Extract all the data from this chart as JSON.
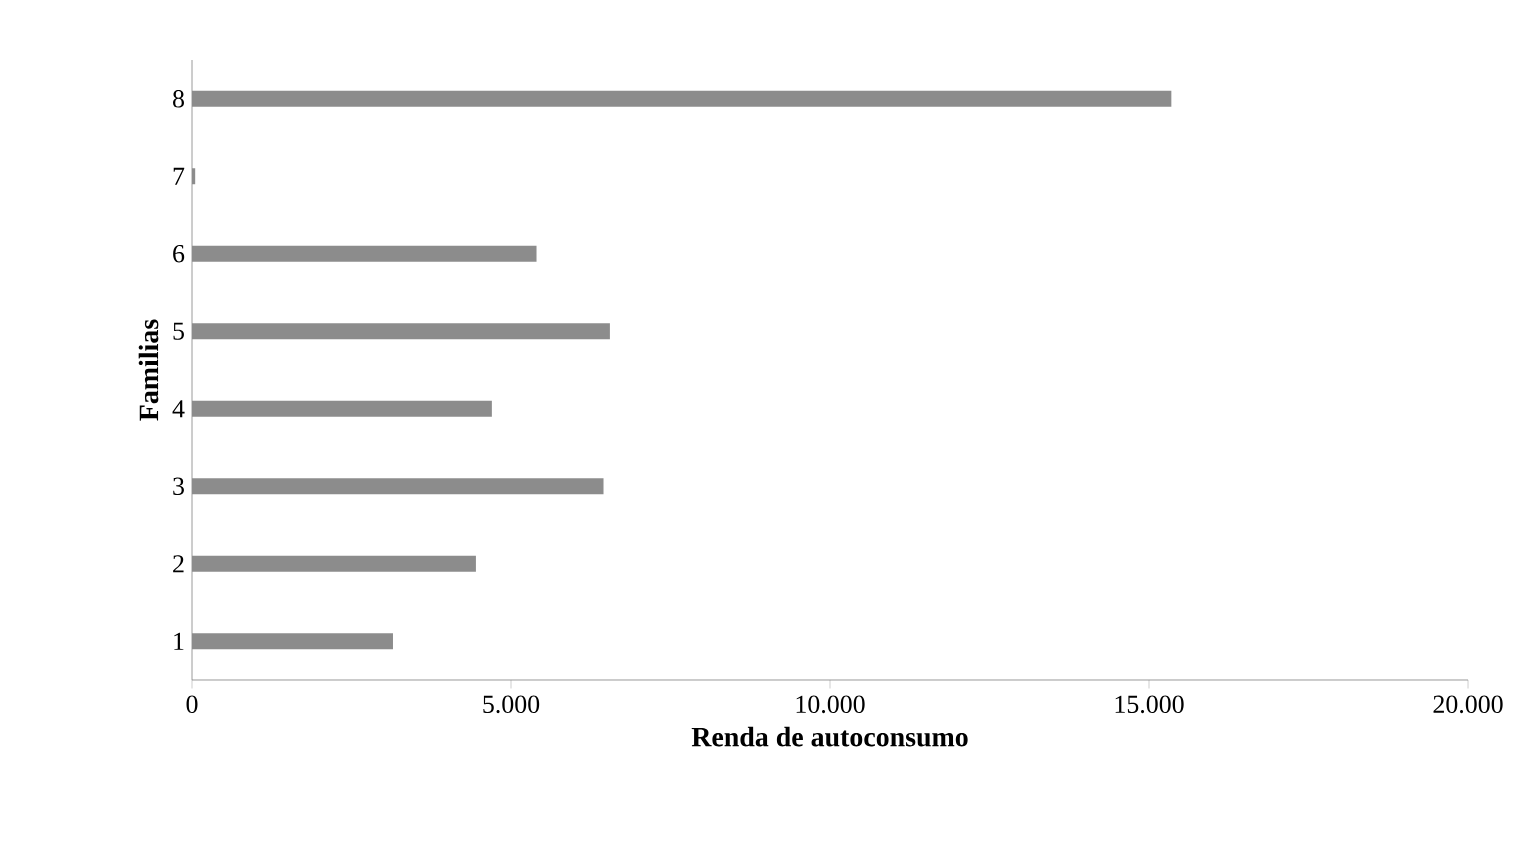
{
  "chart_data": {
    "type": "bar",
    "orientation": "horizontal",
    "xlabel": "Renda de autoconsumo",
    "ylabel": "Familias",
    "categories": [
      "8",
      "7",
      "6",
      "5",
      "4",
      "3",
      "2",
      "1"
    ],
    "values": [
      15350,
      50,
      5400,
      6550,
      4700,
      6450,
      4450,
      3150
    ],
    "color": "#8c8c8c",
    "xlim": [
      0,
      20000
    ],
    "xticks": [
      {
        "value": 0,
        "label": "0"
      },
      {
        "value": 5000,
        "label": "5.000"
      },
      {
        "value": 10000,
        "label": "10.000"
      },
      {
        "value": 15000,
        "label": "15.000"
      },
      {
        "value": 20000,
        "label": "20.000"
      }
    ],
    "grid": false
  }
}
